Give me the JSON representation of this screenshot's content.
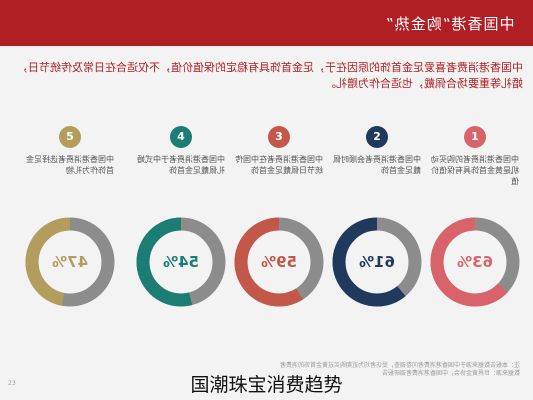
{
  "header": {
    "title": "中国香港“购金热”"
  },
  "intro": {
    "text": "中国香港消费者喜爱足金首饰的原因在于，足金首饰具有稳定的保值价值，不仅适合在日常及传统节日，婚礼等重要场合佩戴，也适合作为赠礼。"
  },
  "columns": [
    {
      "number": "1",
      "text": "中国香港消费者的购买动机是黄金首饰具有保值价值",
      "percent_label": "63%",
      "value": 63,
      "color": "#d9636b"
    },
    {
      "number": "2",
      "text": "中国香港消费者会顺时佩戴足金首饰",
      "percent_label": "61%",
      "value": 61,
      "color": "#1f3a5c"
    },
    {
      "number": "3",
      "text": "中国香港消费者在中国传统节日佩戴足金首饰",
      "percent_label": "59%",
      "value": 59,
      "color": "#c3584a"
    },
    {
      "number": "4",
      "text": "中国香港消费者于中式婚礼佩戴足金首饰",
      "percent_label": "54%",
      "value": 54,
      "color": "#1b7d74"
    },
    {
      "number": "5",
      "text": "中国香港消费者选择足金首饰作为礼物",
      "percent_label": "47%",
      "value": 47,
      "color": "#b39d5c"
    }
  ],
  "ring_track_color": "#8c8c8c",
  "footnote": {
    "line1": "注：本报告数据来源于中国香港消费者问卷调查，受访者均为近期购买过黄金首饰的消费者",
    "line2": "数据来源：世界黄金协会，中国香港消费者调研报告"
  },
  "page_number": "23",
  "caption": "国潮珠宝消费趋势"
}
